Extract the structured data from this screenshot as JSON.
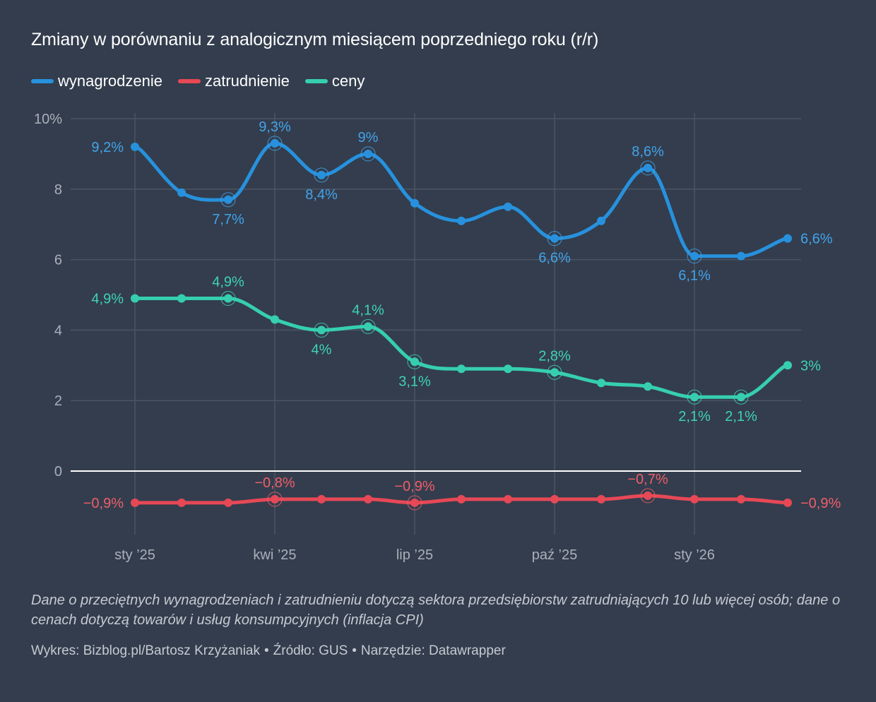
{
  "chart_data": {
    "type": "line",
    "title": "Zmiany w porównaniu z analogicznym miesiącem poprzedniego roku (r/r)",
    "xlabel": "",
    "ylabel": "",
    "ylim": [
      -1.8,
      10
    ],
    "y_ticks": [
      {
        "value": 10,
        "label": "10%"
      },
      {
        "value": 8,
        "label": "8"
      },
      {
        "value": 6,
        "label": "6"
      },
      {
        "value": 4,
        "label": "4"
      },
      {
        "value": 2,
        "label": "2"
      },
      {
        "value": 0,
        "label": "0"
      }
    ],
    "grid": true,
    "legend_position": "top-left",
    "x": [
      "2025-01",
      "2025-02",
      "2025-03",
      "2025-04",
      "2025-05",
      "2025-06",
      "2025-07",
      "2025-08",
      "2025-09",
      "2025-10",
      "2025-11",
      "2025-12",
      "2026-01",
      "2026-02",
      "2026-03"
    ],
    "x_ticks": [
      {
        "index": 0,
        "label": "sty ’25"
      },
      {
        "index": 3,
        "label": "kwi ’25"
      },
      {
        "index": 6,
        "label": "lip ’25"
      },
      {
        "index": 9,
        "label": "paź ’25"
      },
      {
        "index": 12,
        "label": "sty ’26"
      }
    ],
    "series": [
      {
        "name": "wynagrodzenie",
        "color": "#2791dd",
        "label_color": "#42a3ea",
        "values": [
          9.2,
          7.9,
          7.7,
          9.3,
          8.4,
          9.0,
          7.6,
          7.1,
          7.5,
          6.6,
          7.1,
          8.6,
          6.1,
          6.1,
          6.6
        ],
        "annotations": [
          {
            "index": 0,
            "label": "9,2%",
            "pos": "left",
            "ring": false
          },
          {
            "index": 2,
            "label": "7,7%",
            "pos": "below",
            "ring": true
          },
          {
            "index": 3,
            "label": "9,3%",
            "pos": "above",
            "ring": true
          },
          {
            "index": 4,
            "label": "8,4%",
            "pos": "below",
            "ring": true
          },
          {
            "index": 5,
            "label": "9%",
            "pos": "above",
            "ring": true
          },
          {
            "index": 9,
            "label": "6,6%",
            "pos": "below",
            "ring": true
          },
          {
            "index": 11,
            "label": "8,6%",
            "pos": "above",
            "ring": true
          },
          {
            "index": 12,
            "label": "6,1%",
            "pos": "below",
            "ring": true
          },
          {
            "index": 14,
            "label": "6,6%",
            "pos": "right",
            "ring": false
          }
        ]
      },
      {
        "name": "zatrudnienie",
        "color": "#e74856",
        "label_color": "#ef5e6a",
        "values": [
          -0.9,
          -0.9,
          -0.9,
          -0.8,
          -0.8,
          -0.8,
          -0.9,
          -0.8,
          -0.8,
          -0.8,
          -0.8,
          -0.7,
          -0.8,
          -0.8,
          -0.9
        ],
        "annotations": [
          {
            "index": 0,
            "label": "−0,9%",
            "pos": "left",
            "ring": false
          },
          {
            "index": 3,
            "label": "−0,8%",
            "pos": "above",
            "ring": true
          },
          {
            "index": 6,
            "label": "−0,9%",
            "pos": "above",
            "ring": true
          },
          {
            "index": 11,
            "label": "−0,7%",
            "pos": "above",
            "ring": true
          },
          {
            "index": 14,
            "label": "−0,9%",
            "pos": "right",
            "ring": false
          }
        ]
      },
      {
        "name": "ceny",
        "color": "#36cfae",
        "label_color": "#3fd3b2",
        "values": [
          4.9,
          4.9,
          4.9,
          4.3,
          4.0,
          4.1,
          3.1,
          2.9,
          2.9,
          2.8,
          2.5,
          2.4,
          2.1,
          2.1,
          3.0
        ],
        "annotations": [
          {
            "index": 0,
            "label": "4,9%",
            "pos": "left",
            "ring": false
          },
          {
            "index": 2,
            "label": "4,9%",
            "pos": "above",
            "ring": true
          },
          {
            "index": 4,
            "label": "4%",
            "pos": "below",
            "ring": true
          },
          {
            "index": 5,
            "label": "4,1%",
            "pos": "above",
            "ring": true
          },
          {
            "index": 6,
            "label": "3,1%",
            "pos": "below",
            "ring": true
          },
          {
            "index": 9,
            "label": "2,8%",
            "pos": "above",
            "ring": true
          },
          {
            "index": 12,
            "label": "2,1%",
            "pos": "below",
            "ring": true
          },
          {
            "index": 13,
            "label": "2,1%",
            "pos": "below",
            "ring": true
          },
          {
            "index": 14,
            "label": "3%",
            "pos": "right",
            "ring": false
          }
        ]
      }
    ]
  },
  "header": {
    "title": "Zmiany w porównaniu z analogicznym miesiącem poprzedniego roku (r/r)"
  },
  "legend": [
    {
      "label": "wynagrodzenie",
      "color": "#2791dd"
    },
    {
      "label": "zatrudnienie",
      "color": "#e74856"
    },
    {
      "label": "ceny",
      "color": "#36cfae"
    }
  ],
  "footer": {
    "notes": "Dane o przeciętnych wynagrodzeniach i zatrudnieniu dotyczą sektora przedsiębiorstw zatrudniających 10 lub więcej osób; dane o cenach dotyczą towarów i usług konsumpcyjnych (inflacja CPI)",
    "chart_credit": "Wykres: Bizblog.pl/Bartosz Krzyżaniak",
    "source": "Źródło: GUS",
    "tool": "Narzędzie: Datawrapper",
    "separator": "•"
  },
  "colors": {
    "background": "#333d4d",
    "grid": "#4b5463",
    "zero_line": "#ffffff",
    "axis_text": "#aab0ba"
  }
}
